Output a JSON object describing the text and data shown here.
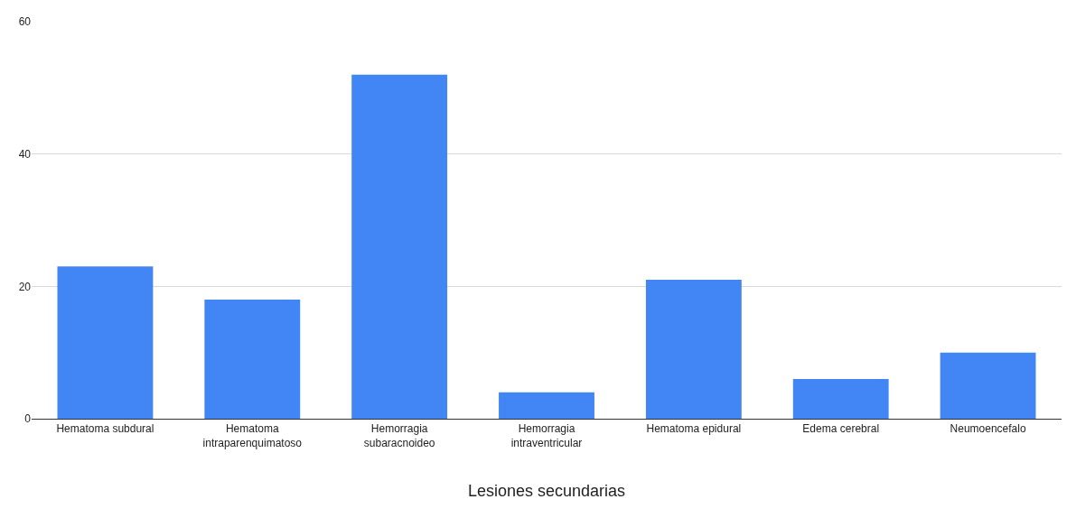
{
  "chart_data": {
    "type": "bar",
    "xlabel": "Lesiones secundarias",
    "categories": [
      "Hematoma subdural",
      "Hematoma intraparenquimatoso",
      "Hemorragia subaracnoideo",
      "Hemorragia intraventricular",
      "Hematoma epidural",
      "Edema cerebral",
      "Neumoencefalo"
    ],
    "values": [
      23,
      18,
      52,
      4,
      21,
      6,
      10
    ],
    "color": "#4285f4",
    "ylim": [
      0,
      60
    ],
    "yticks": [
      0,
      20,
      40,
      60
    ],
    "grid": "y"
  }
}
